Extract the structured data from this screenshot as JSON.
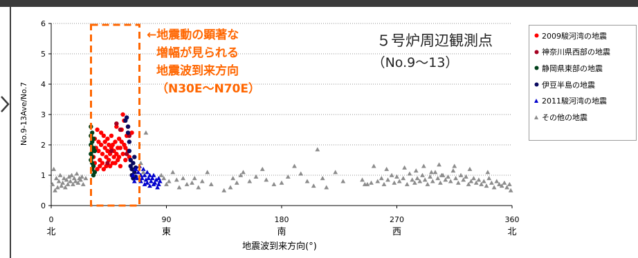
{
  "chart_data": {
    "type": "scatter",
    "title": "５号炉周辺観測点",
    "subtitle": "（No.9～13）",
    "xlabel": "地震波到来方向(°)",
    "ylabel": "No.9-13Ave/No.7",
    "xlim": [
      0,
      360
    ],
    "ylim": [
      0,
      6
    ],
    "xticks": [
      {
        "value": 0,
        "label": "0",
        "dir": "北"
      },
      {
        "value": 90,
        "label": "90",
        "dir": "東"
      },
      {
        "value": 180,
        "label": "180",
        "dir": "南"
      },
      {
        "value": 270,
        "label": "270",
        "dir": "西"
      },
      {
        "value": 360,
        "label": "360",
        "dir": "北"
      }
    ],
    "yticks": [
      "0",
      "1",
      "2",
      "3",
      "4",
      "5",
      "6"
    ],
    "grid": "horizontal dotted",
    "annotation": {
      "lines": [
        "←地震動の顕著な",
        "増幅が見られる",
        "地震波到来方向",
        "（N30E～N70E）"
      ],
      "color": "#ff6600",
      "range": [
        30,
        70
      ]
    },
    "legend_position": "right",
    "series": [
      {
        "name": "2009駿河湾の地震",
        "color": "#ff0000",
        "marker": "circle",
        "points": [
          [
            33,
            1.6
          ],
          [
            34,
            2.2
          ],
          [
            34,
            1.4
          ],
          [
            35,
            1.9
          ],
          [
            36,
            2.5
          ],
          [
            36,
            1.2
          ],
          [
            37,
            1.8
          ],
          [
            37,
            2.1
          ],
          [
            38,
            1.5
          ],
          [
            38,
            1.3
          ],
          [
            39,
            2.0
          ],
          [
            39,
            2.4
          ],
          [
            40,
            1.7
          ],
          [
            40,
            1.4
          ],
          [
            41,
            2.3
          ],
          [
            41,
            1.2
          ],
          [
            42,
            1.9
          ],
          [
            42,
            2.1
          ],
          [
            43,
            1.6
          ],
          [
            43,
            1.3
          ],
          [
            44,
            2.2
          ],
          [
            44,
            1.8
          ],
          [
            45,
            1.5
          ],
          [
            45,
            2.0
          ],
          [
            46,
            1.3
          ],
          [
            46,
            1.7
          ],
          [
            47,
            2.3
          ],
          [
            47,
            1.9
          ],
          [
            48,
            1.4
          ],
          [
            48,
            2.0
          ],
          [
            49,
            1.6
          ],
          [
            49,
            1.8
          ],
          [
            50,
            2.1
          ],
          [
            50,
            1.4
          ],
          [
            51,
            1.7
          ],
          [
            51,
            2.6
          ],
          [
            52,
            1.9
          ],
          [
            52,
            1.5
          ],
          [
            53,
            2.2
          ],
          [
            53,
            1.6
          ],
          [
            54,
            1.9
          ],
          [
            54,
            1.3
          ],
          [
            55,
            2.1
          ],
          [
            55,
            2.5
          ],
          [
            56,
            3.0
          ],
          [
            56,
            1.7
          ],
          [
            57,
            2.8
          ],
          [
            57,
            2.0
          ],
          [
            58,
            1.9
          ],
          [
            58,
            1.5
          ],
          [
            59,
            2.3
          ],
          [
            60,
            1.8
          ],
          [
            60,
            2.6
          ],
          [
            61,
            1.6
          ],
          [
            62,
            1.5
          ],
          [
            63,
            2.4
          ]
        ]
      },
      {
        "name": "神奈川県西部の地震",
        "color": "#a50021",
        "marker": "circle",
        "points": [
          [
            44,
            1.4
          ],
          [
            47,
            1.8
          ],
          [
            51,
            2.7
          ],
          [
            54,
            2.5
          ],
          [
            59,
            1.7
          ],
          [
            61,
            2.3
          ]
        ]
      },
      {
        "name": "静岡県東部の地震",
        "color": "#00401a",
        "marker": "circle",
        "points": [
          [
            31,
            2.6
          ],
          [
            31,
            2.3
          ],
          [
            31,
            2.0
          ],
          [
            31,
            1.7
          ],
          [
            31,
            1.5
          ],
          [
            32,
            2.4
          ],
          [
            32,
            2.1
          ],
          [
            32,
            1.8
          ],
          [
            32,
            1.6
          ],
          [
            32,
            1.4
          ],
          [
            32,
            1.2
          ],
          [
            33,
            2.2
          ],
          [
            33,
            1.9
          ],
          [
            33,
            1.3
          ],
          [
            33,
            1.0
          ],
          [
            34,
            1.8
          ],
          [
            34,
            1.1
          ]
        ]
      },
      {
        "name": "伊豆半島の地震",
        "color": "#0a0a60",
        "marker": "circle",
        "points": [
          [
            58,
            2.8
          ],
          [
            59,
            2.9
          ],
          [
            60,
            2.6
          ],
          [
            60,
            2.4
          ],
          [
            61,
            2.1
          ],
          [
            61,
            1.8
          ],
          [
            62,
            1.5
          ],
          [
            62,
            1.3
          ],
          [
            63,
            1.2
          ],
          [
            63,
            1.0
          ],
          [
            64,
            1.4
          ],
          [
            64,
            0.9
          ],
          [
            65,
            1.1
          ],
          [
            65,
            1.6
          ],
          [
            66,
            0.95
          ],
          [
            66,
            1.25
          ]
        ]
      },
      {
        "name": "2011駿河湾の地震",
        "color": "#0000cc",
        "marker": "triangle",
        "points": [
          [
            64,
            1.0
          ],
          [
            65,
            0.8
          ],
          [
            66,
            1.2
          ],
          [
            67,
            0.9
          ],
          [
            68,
            1.1
          ],
          [
            69,
            1.3
          ],
          [
            70,
            0.8
          ],
          [
            70,
            1.0
          ],
          [
            71,
            0.9
          ],
          [
            72,
            1.2
          ],
          [
            73,
            0.7
          ],
          [
            73,
            1.0
          ],
          [
            74,
            0.85
          ],
          [
            75,
            1.1
          ],
          [
            75,
            0.75
          ],
          [
            76,
            0.9
          ],
          [
            77,
            0.65
          ],
          [
            77,
            1.0
          ],
          [
            78,
            0.8
          ],
          [
            79,
            0.9
          ],
          [
            80,
            0.7
          ],
          [
            80,
            1.0
          ],
          [
            81,
            0.75
          ],
          [
            82,
            0.85
          ],
          [
            83,
            0.6
          ],
          [
            84,
            0.9
          ],
          [
            84,
            0.7
          ],
          [
            85,
            0.8
          ]
        ]
      },
      {
        "name": "その他の地震",
        "color": "#8c8c8c",
        "marker": "triangle",
        "points": [
          [
            1,
            0.7
          ],
          [
            2,
            1.2
          ],
          [
            3,
            0.5
          ],
          [
            4,
            0.9
          ],
          [
            5,
            0.6
          ],
          [
            6,
            0.8
          ],
          [
            7,
            1.0
          ],
          [
            8,
            0.65
          ],
          [
            9,
            0.75
          ],
          [
            10,
            0.9
          ],
          [
            11,
            0.6
          ],
          [
            12,
            0.85
          ],
          [
            13,
            0.7
          ],
          [
            14,
            0.95
          ],
          [
            15,
            0.8
          ],
          [
            16,
            1.0
          ],
          [
            17,
            0.7
          ],
          [
            18,
            0.9
          ],
          [
            19,
            0.8
          ],
          [
            20,
            1.05
          ],
          [
            21,
            0.75
          ],
          [
            22,
            0.9
          ],
          [
            23,
            0.85
          ],
          [
            24,
            0.95
          ],
          [
            25,
            0.7
          ],
          [
            27,
            0.9
          ],
          [
            70,
            1.4
          ],
          [
            72,
            1.1
          ],
          [
            74,
            2.4
          ],
          [
            86,
            1.0
          ],
          [
            88,
            0.9
          ],
          [
            90,
            0.7
          ],
          [
            92,
            0.8
          ],
          [
            95,
            1.1
          ],
          [
            98,
            0.85
          ],
          [
            100,
            0.6
          ],
          [
            103,
            0.9
          ],
          [
            106,
            0.7
          ],
          [
            110,
            0.75
          ],
          [
            112,
            0.9
          ],
          [
            115,
            0.6
          ],
          [
            118,
            0.8
          ],
          [
            122,
            1.1
          ],
          [
            125,
            0.7
          ],
          [
            135,
            0.5
          ],
          [
            140,
            0.6
          ],
          [
            142,
            0.9
          ],
          [
            145,
            0.75
          ],
          [
            148,
            1.0
          ],
          [
            150,
            1.1
          ],
          [
            155,
            0.8
          ],
          [
            160,
            0.95
          ],
          [
            165,
            1.2
          ],
          [
            168,
            0.85
          ],
          [
            174,
            0.7
          ],
          [
            180,
            0.75
          ],
          [
            185,
            0.95
          ],
          [
            190,
            1.3
          ],
          [
            195,
            1.05
          ],
          [
            200,
            0.8
          ],
          [
            205,
            0.65
          ],
          [
            208,
            1.85
          ],
          [
            212,
            0.9
          ],
          [
            215,
            0.6
          ],
          [
            222,
            1.1
          ],
          [
            228,
            0.8
          ],
          [
            243,
            0.85
          ],
          [
            247,
            0.7
          ],
          [
            250,
            0.75
          ],
          [
            255,
            0.8
          ],
          [
            258,
            0.9
          ],
          [
            260,
            0.7
          ],
          [
            263,
            0.85
          ],
          [
            266,
            1.0
          ],
          [
            268,
            0.75
          ],
          [
            270,
            0.95
          ],
          [
            272,
            0.8
          ],
          [
            275,
            0.9
          ],
          [
            278,
            0.7
          ],
          [
            280,
            1.05
          ],
          [
            282,
            0.85
          ],
          [
            284,
            0.75
          ],
          [
            286,
            0.9
          ],
          [
            288,
            0.8
          ],
          [
            290,
            1.0
          ],
          [
            292,
            0.85
          ],
          [
            294,
            0.7
          ],
          [
            296,
            0.95
          ],
          [
            298,
            0.8
          ],
          [
            300,
            1.1
          ],
          [
            302,
            0.9
          ],
          [
            304,
            0.75
          ],
          [
            306,
            1.0
          ],
          [
            308,
            0.85
          ],
          [
            310,
            0.95
          ],
          [
            312,
            0.8
          ],
          [
            314,
            1.15
          ],
          [
            316,
            0.9
          ],
          [
            318,
            0.75
          ],
          [
            320,
            1.0
          ],
          [
            322,
            0.85
          ],
          [
            324,
            0.95
          ],
          [
            326,
            0.7
          ],
          [
            328,
            0.8
          ],
          [
            330,
            0.9
          ],
          [
            332,
            0.75
          ],
          [
            334,
            0.85
          ],
          [
            336,
            0.7
          ],
          [
            338,
            0.8
          ],
          [
            340,
            0.65
          ],
          [
            342,
            0.9
          ],
          [
            344,
            0.75
          ],
          [
            346,
            0.6
          ],
          [
            348,
            0.8
          ],
          [
            350,
            0.7
          ],
          [
            352,
            0.65
          ],
          [
            354,
            0.75
          ],
          [
            356,
            0.6
          ],
          [
            358,
            0.7
          ],
          [
            359,
            0.5
          ],
          [
            245,
            0.7
          ],
          [
            252,
            1.3
          ],
          [
            262,
            1.2
          ],
          [
            276,
            1.25
          ],
          [
            291,
            1.3
          ],
          [
            303,
            1.35
          ],
          [
            315,
            1.3
          ],
          [
            327,
            1.2
          ],
          [
            341,
            1.1
          ],
          [
            305,
            1.0
          ],
          [
            297,
            1.1
          ],
          [
            285,
            1.15
          ]
        ]
      }
    ]
  }
}
